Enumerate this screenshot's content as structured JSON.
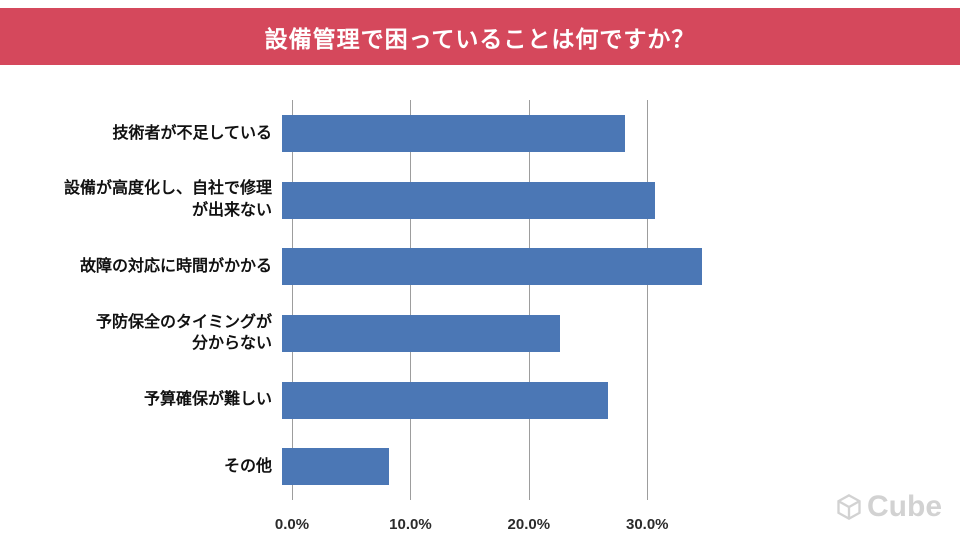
{
  "title": {
    "text": "設備管理で困っていることは何ですか？",
    "bg_color": "#d5485c",
    "text_color": "#ffffff"
  },
  "watermark": {
    "text": "Cube"
  },
  "chart_data": {
    "type": "bar",
    "orientation": "horizontal",
    "title": "設備管理で困っていることは何ですか？",
    "categories": [
      "技術者が不足している",
      "設備が高度化し、自社で修理\nが出来ない",
      "故障の対応に時間がかかる",
      "予防保全のタイミングが\n分からない",
      "予算確保が難しい",
      "その他"
    ],
    "values": [
      29.0,
      31.5,
      35.5,
      23.5,
      27.5,
      9.0
    ],
    "value_unit": "%",
    "bar_color": "#4b77b5",
    "grid_color": "#9d9d9d",
    "xlim": [
      0,
      38
    ],
    "x_ticks": [
      {
        "value": 0,
        "label": "0.0%"
      },
      {
        "value": 10,
        "label": "10.0%"
      },
      {
        "value": 20,
        "label": "20.0%"
      },
      {
        "value": 30,
        "label": "30.0%"
      }
    ],
    "grid": true,
    "legend": false,
    "xlabel": "",
    "ylabel": ""
  }
}
